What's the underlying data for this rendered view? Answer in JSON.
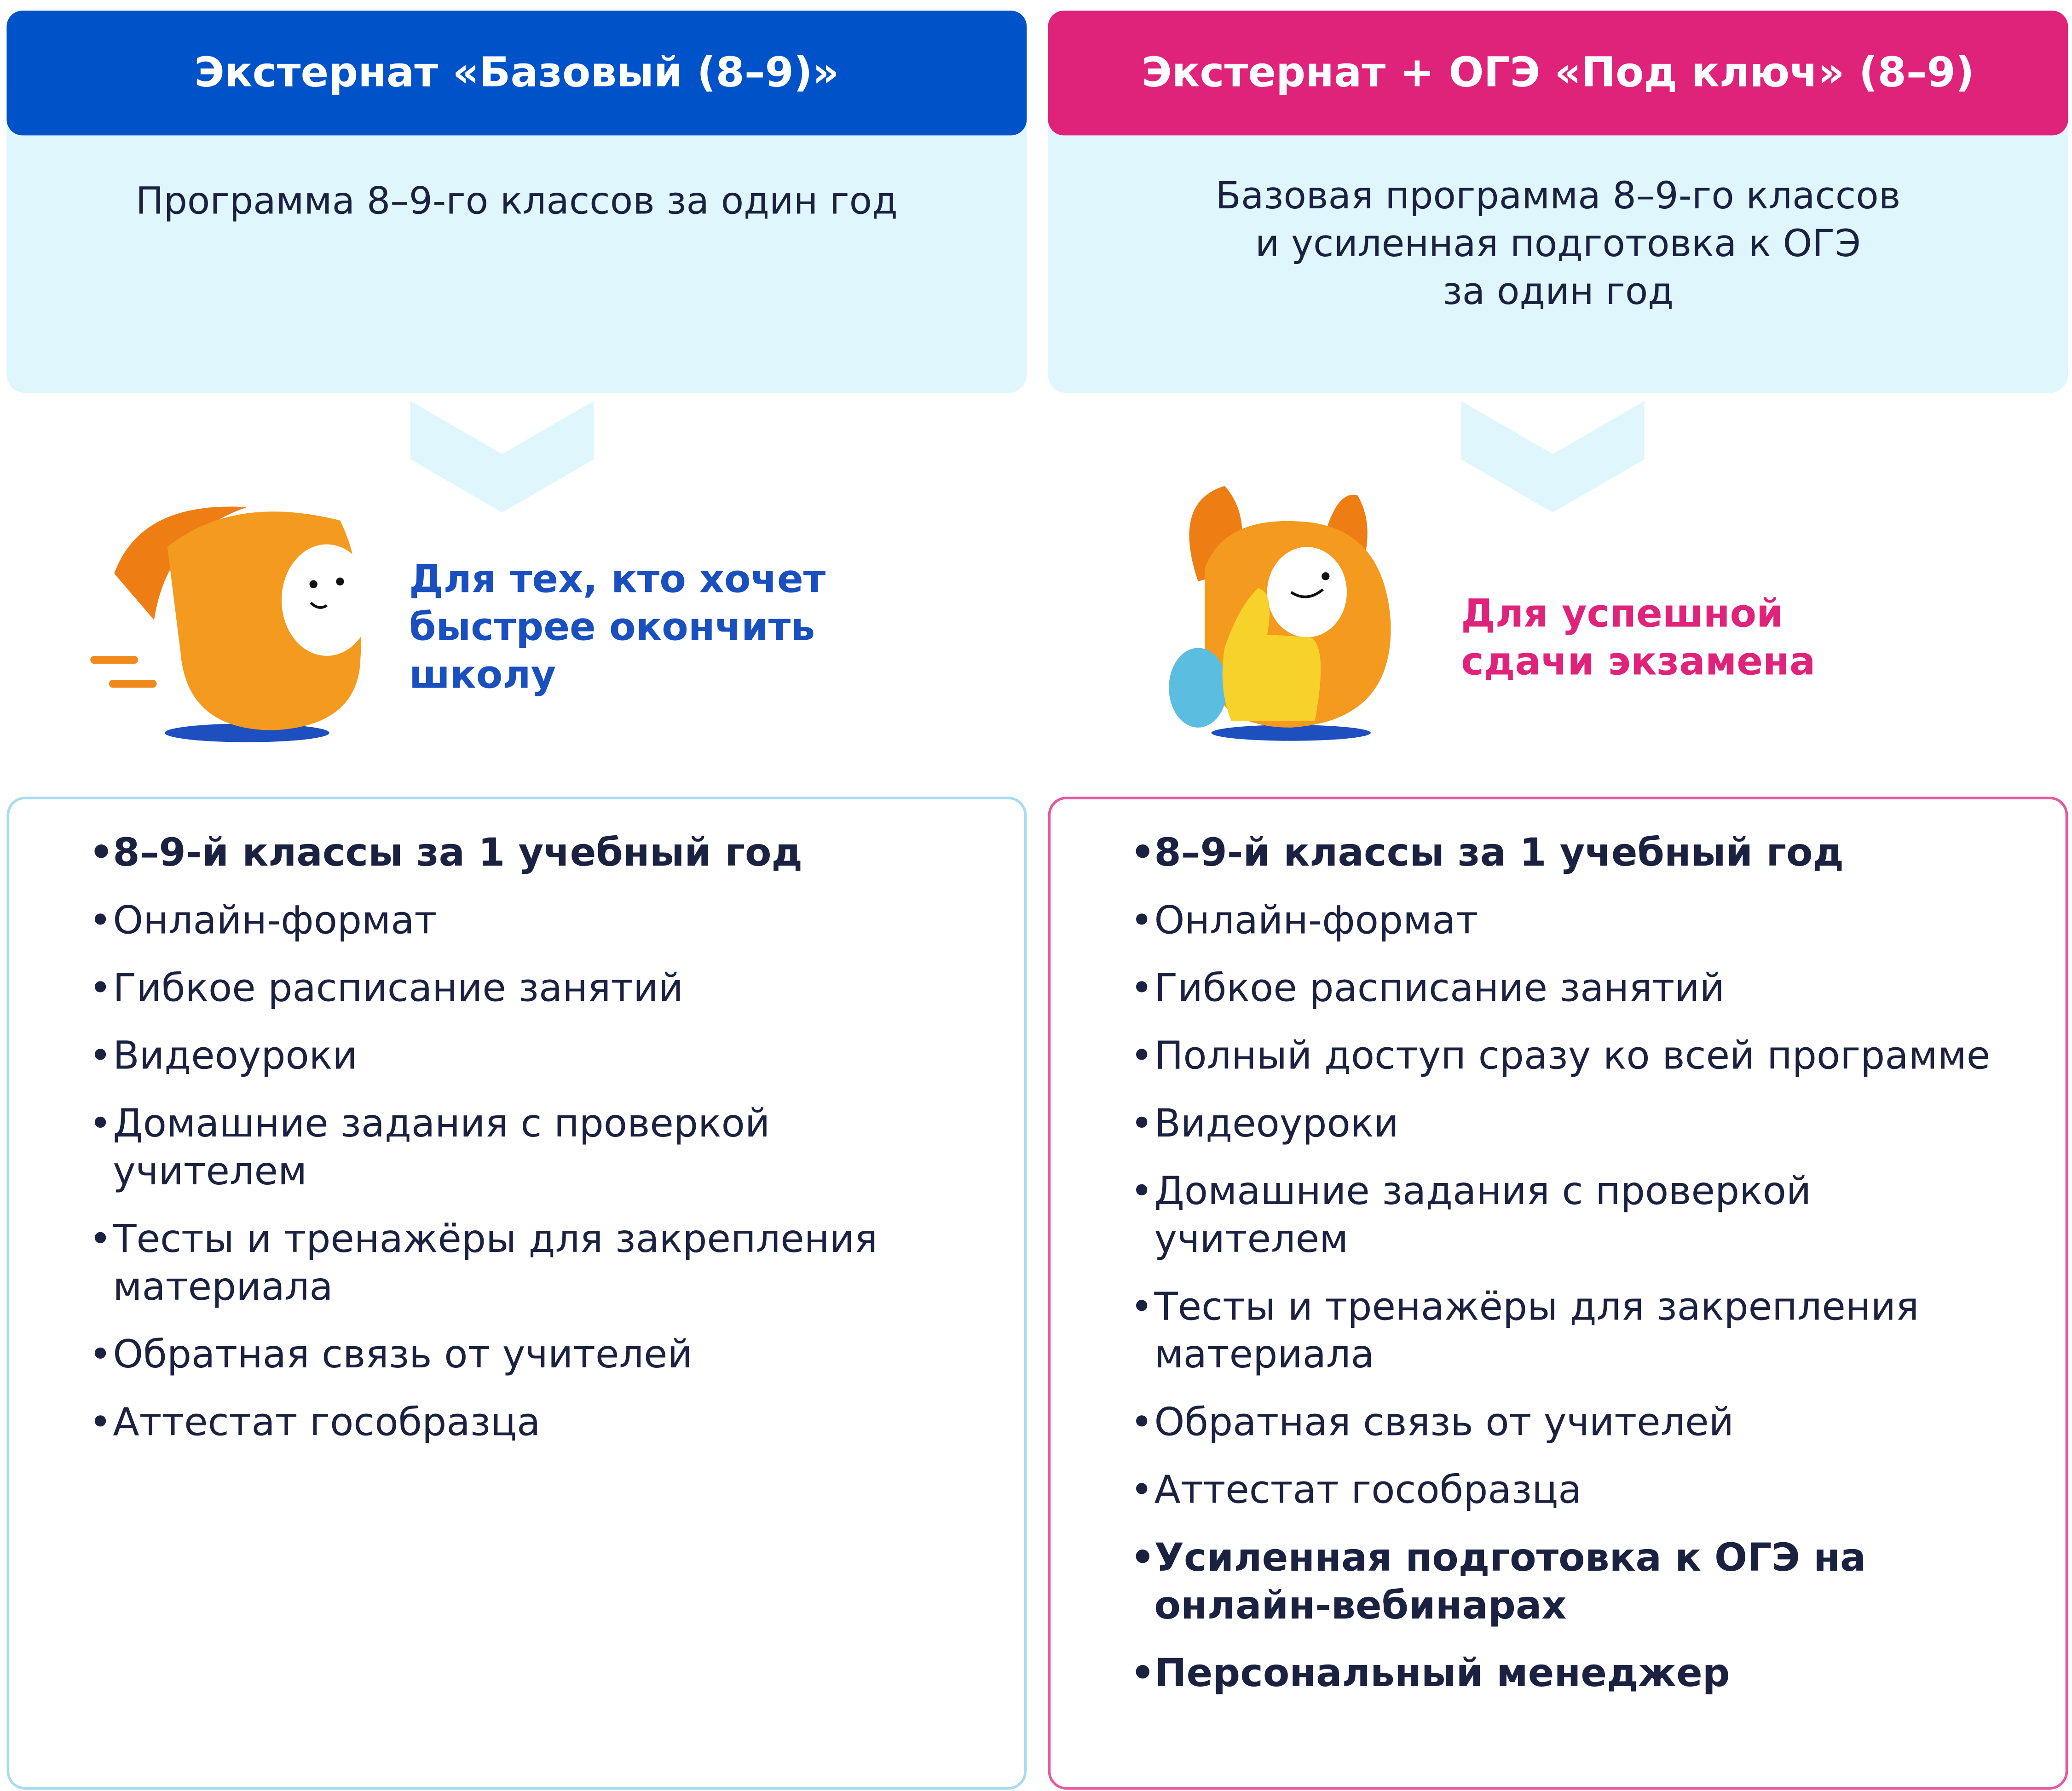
{
  "plans": [
    {
      "title": "Экстернат «Базовый (8–9)»",
      "subtitle": "Программа 8–9-го классов за один год",
      "tagline": "Для тех, кто хочет\nбыстрее окончить\nшколу",
      "color": "#0052c9",
      "features": [
        {
          "text": "8–9-й классы за 1 учебный год",
          "bold": true
        },
        {
          "text": "Онлайн-формат",
          "bold": false
        },
        {
          "text": "Гибкое расписание занятий",
          "bold": false
        },
        {
          "text": "Видеоуроки",
          "bold": false
        },
        {
          "text": "Домашние задания с проверкой учителем",
          "bold": false
        },
        {
          "text": "Тесты и тренажёры для закрепления материала",
          "bold": false
        },
        {
          "text": "Обратная связь от учителей",
          "bold": false
        },
        {
          "text": "Аттестат гособразца",
          "bold": false
        }
      ]
    },
    {
      "title": "Экстернат + ОГЭ «Под ключ» (8–9)",
      "subtitle": "Базовая программа 8–9-го классов\nи усиленная подготовка к ОГЭ\nза один год",
      "tagline": "Для успешной\nсдачи экзамена",
      "color": "#e0237a",
      "features": [
        {
          "text": "8–9-й классы за 1 учебный год",
          "bold": true
        },
        {
          "text": "Онлайн-формат",
          "bold": false
        },
        {
          "text": "Гибкое расписание занятий",
          "bold": false
        },
        {
          "text": "Полный доступ сразу ко всей программе",
          "bold": false
        },
        {
          "text": "Видеоуроки",
          "bold": false
        },
        {
          "text": "Домашние задания с проверкой учителем",
          "bold": false
        },
        {
          "text": "Тесты и тренажёры для закрепления материала",
          "bold": false
        },
        {
          "text": "Обратная связь от учителей",
          "bold": false
        },
        {
          "text": "Аттестат гособразца",
          "bold": false
        },
        {
          "text": "Усиленная подготовка к ОГЭ на онлайн-вебинарах",
          "bold": true
        },
        {
          "text": "Персональный менеджер",
          "bold": true
        }
      ]
    }
  ],
  "icons": {
    "left_mascot": "running-backpack-mascot",
    "right_mascot": "thumbs-up-backpack-mascot",
    "arrow": "chevron-down-icon"
  }
}
